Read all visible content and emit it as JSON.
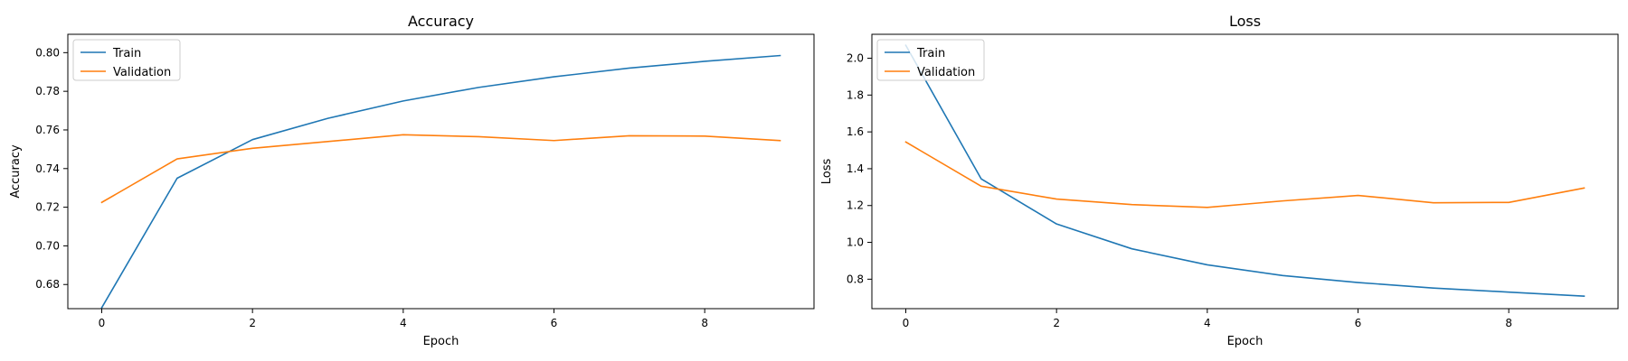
{
  "figure": {
    "chart_data": [
      {
        "type": "line",
        "title": "Accuracy",
        "xlabel": "Epoch",
        "ylabel": "Accuracy",
        "x": [
          0,
          1,
          2,
          3,
          4,
          5,
          6,
          7,
          8,
          9
        ],
        "xlim": [
          -0.45,
          9.45
        ],
        "ylim": [
          0.6675,
          0.8095
        ],
        "xticks": [
          0,
          2,
          4,
          6,
          8
        ],
        "xtick_labels": [
          "0",
          "2",
          "4",
          "6",
          "8"
        ],
        "yticks": [
          0.68,
          0.7,
          0.72,
          0.74,
          0.76,
          0.78,
          0.8
        ],
        "ytick_labels": [
          "0.68",
          "0.70",
          "0.72",
          "0.74",
          "0.76",
          "0.78",
          "0.80"
        ],
        "legend_position": "top-left",
        "grid": false,
        "series": [
          {
            "name": "Train",
            "color": "#1f77b4",
            "values": [
              0.668,
              0.735,
              0.755,
              0.766,
              0.775,
              0.782,
              0.7875,
              0.792,
              0.7955,
              0.7985
            ]
          },
          {
            "name": "Validation",
            "color": "#ff7f0e",
            "values": [
              0.7225,
              0.745,
              0.7505,
              0.754,
              0.7575,
              0.7565,
              0.7545,
              0.757,
              0.7568,
              0.7545
            ]
          }
        ]
      },
      {
        "type": "line",
        "title": "Loss",
        "xlabel": "Epoch",
        "ylabel": "Loss",
        "x": [
          0,
          1,
          2,
          3,
          4,
          5,
          6,
          7,
          8,
          9
        ],
        "xlim": [
          -0.45,
          9.45
        ],
        "ylim": [
          0.64,
          2.13
        ],
        "xticks": [
          0,
          2,
          4,
          6,
          8
        ],
        "xtick_labels": [
          "0",
          "2",
          "4",
          "6",
          "8"
        ],
        "yticks": [
          0.8,
          1.0,
          1.2,
          1.4,
          1.6,
          1.8,
          2.0
        ],
        "ytick_labels": [
          "0.8",
          "1.0",
          "1.2",
          "1.4",
          "1.6",
          "1.8",
          "2.0"
        ],
        "legend_position": "top-left",
        "grid": false,
        "series": [
          {
            "name": "Train",
            "color": "#1f77b4",
            "values": [
              2.07,
              1.345,
              1.1,
              0.965,
              0.878,
              0.82,
              0.782,
              0.752,
              0.73,
              0.708
            ]
          },
          {
            "name": "Validation",
            "color": "#ff7f0e",
            "values": [
              1.545,
              1.305,
              1.235,
              1.205,
              1.19,
              1.225,
              1.255,
              1.215,
              1.217,
              1.295
            ]
          }
        ]
      }
    ]
  }
}
